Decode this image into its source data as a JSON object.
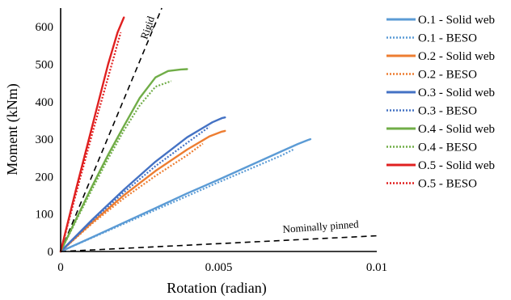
{
  "chart_data": {
    "type": "line",
    "xlabel": "Rotation (radian)",
    "ylabel": "Moment (kNm)",
    "xlim": [
      0,
      0.01
    ],
    "ylim": [
      0,
      650
    ],
    "x_ticks": [
      0,
      0.005,
      0.01
    ],
    "x_tick_labels": [
      "0",
      "0.005",
      "0.01"
    ],
    "y_ticks": [
      0,
      100,
      200,
      300,
      400,
      500,
      600
    ],
    "y_tick_labels": [
      "0",
      "100",
      "200",
      "300",
      "400",
      "500",
      "600"
    ],
    "grid": false,
    "legend_position": "right",
    "series": [
      {
        "name": "O.1 - Solid web",
        "color": "#5B9BD5",
        "dash": "solid",
        "x": [
          0,
          0.001,
          0.002,
          0.003,
          0.004,
          0.005,
          0.006,
          0.007,
          0.0075,
          0.0078,
          0.0079
        ],
        "y": [
          0,
          38,
          77,
          116,
          155,
          192,
          230,
          268,
          287,
          297,
          300
        ]
      },
      {
        "name": "O.1 - BESO",
        "color": "#5B9BD5",
        "dash": "dotted",
        "x": [
          0,
          0.001,
          0.002,
          0.003,
          0.004,
          0.005,
          0.006,
          0.007,
          0.0074
        ],
        "y": [
          0,
          37,
          74,
          111,
          148,
          185,
          221,
          257,
          274
        ]
      },
      {
        "name": "O.2 - Solid web",
        "color": "#ED7D31",
        "dash": "solid",
        "x": [
          0,
          0.001,
          0.002,
          0.003,
          0.004,
          0.0047,
          0.0051,
          0.0052
        ],
        "y": [
          0,
          78,
          150,
          215,
          272,
          307,
          320,
          322
        ]
      },
      {
        "name": "O.2 - BESO",
        "color": "#ED7D31",
        "dash": "dotted",
        "x": [
          0,
          0.001,
          0.002,
          0.003,
          0.004,
          0.0045
        ],
        "y": [
          0,
          75,
          142,
          202,
          257,
          288
        ]
      },
      {
        "name": "O.3 - Solid web",
        "color": "#4472C4",
        "dash": "solid",
        "x": [
          0,
          0.001,
          0.002,
          0.003,
          0.004,
          0.0048,
          0.0051,
          0.0052
        ],
        "y": [
          0,
          85,
          165,
          240,
          305,
          345,
          356,
          358
        ]
      },
      {
        "name": "O.3 - BESO",
        "color": "#4472C4",
        "dash": "dotted",
        "x": [
          0,
          0.001,
          0.002,
          0.003,
          0.004,
          0.0047
        ],
        "y": [
          0,
          82,
          158,
          228,
          290,
          333
        ]
      },
      {
        "name": "O.4 - Solid web",
        "color": "#70AD47",
        "dash": "solid",
        "x": [
          0,
          0.0005,
          0.001,
          0.0015,
          0.002,
          0.0025,
          0.003,
          0.0034,
          0.0038,
          0.004
        ],
        "y": [
          0,
          88,
          175,
          258,
          335,
          410,
          465,
          482,
          486,
          487
        ]
      },
      {
        "name": "O.4 - BESO",
        "color": "#70AD47",
        "dash": "dotted",
        "x": [
          0,
          0.0005,
          0.001,
          0.0015,
          0.002,
          0.0025,
          0.003,
          0.0035
        ],
        "y": [
          0,
          84,
          167,
          248,
          323,
          390,
          440,
          455
        ]
      },
      {
        "name": "O.5 - Solid web",
        "color": "#E02020",
        "dash": "solid",
        "x": [
          0,
          0.0005,
          0.001,
          0.0015,
          0.0018,
          0.002
        ],
        "y": [
          0,
          170,
          335,
          500,
          585,
          625
        ]
      },
      {
        "name": "O.5 - BESO",
        "color": "#E02020",
        "dash": "dotted",
        "x": [
          0,
          0.0005,
          0.001,
          0.0015,
          0.0019
        ],
        "y": [
          0,
          158,
          315,
          465,
          585
        ]
      }
    ],
    "reference_lines": [
      {
        "label": "Rigid",
        "x": [
          0,
          0.0032
        ],
        "y": [
          0,
          650
        ]
      },
      {
        "label": "Nominally pinned",
        "x": [
          0,
          0.01
        ],
        "y": [
          0,
          42
        ]
      }
    ]
  }
}
